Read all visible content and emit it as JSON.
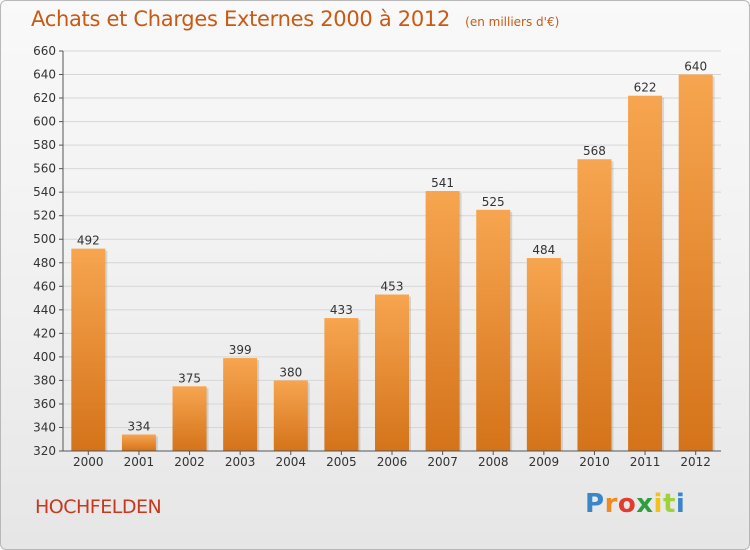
{
  "chart_data": {
    "type": "bar",
    "title": "Achats et Charges Externes 2000 à 2012",
    "subtitle": "(en milliers d'€)",
    "categories": [
      "2000",
      "2001",
      "2002",
      "2003",
      "2004",
      "2005",
      "2006",
      "2007",
      "2008",
      "2009",
      "2010",
      "2011",
      "2012"
    ],
    "values": [
      492,
      334,
      375,
      399,
      380,
      433,
      453,
      541,
      525,
      484,
      568,
      622,
      640
    ],
    "ylim": [
      320,
      660
    ],
    "yticks": [
      320,
      340,
      360,
      380,
      400,
      420,
      440,
      460,
      480,
      500,
      520,
      540,
      560,
      580,
      600,
      620,
      640,
      660
    ],
    "grid": true,
    "bar_color_top": "#f7a550",
    "bar_color_bottom": "#d4731a"
  },
  "footer": {
    "commune": "HOCHFELDEN",
    "logo_letters": [
      "P",
      "r",
      "o",
      "x",
      "i",
      "t",
      "i"
    ],
    "logo_colors": [
      "#3a86c8",
      "#f08a1c",
      "#e23c2c",
      "#2e9e3e",
      "#f2c21a",
      "#9fd23a",
      "#3a86c8"
    ]
  }
}
